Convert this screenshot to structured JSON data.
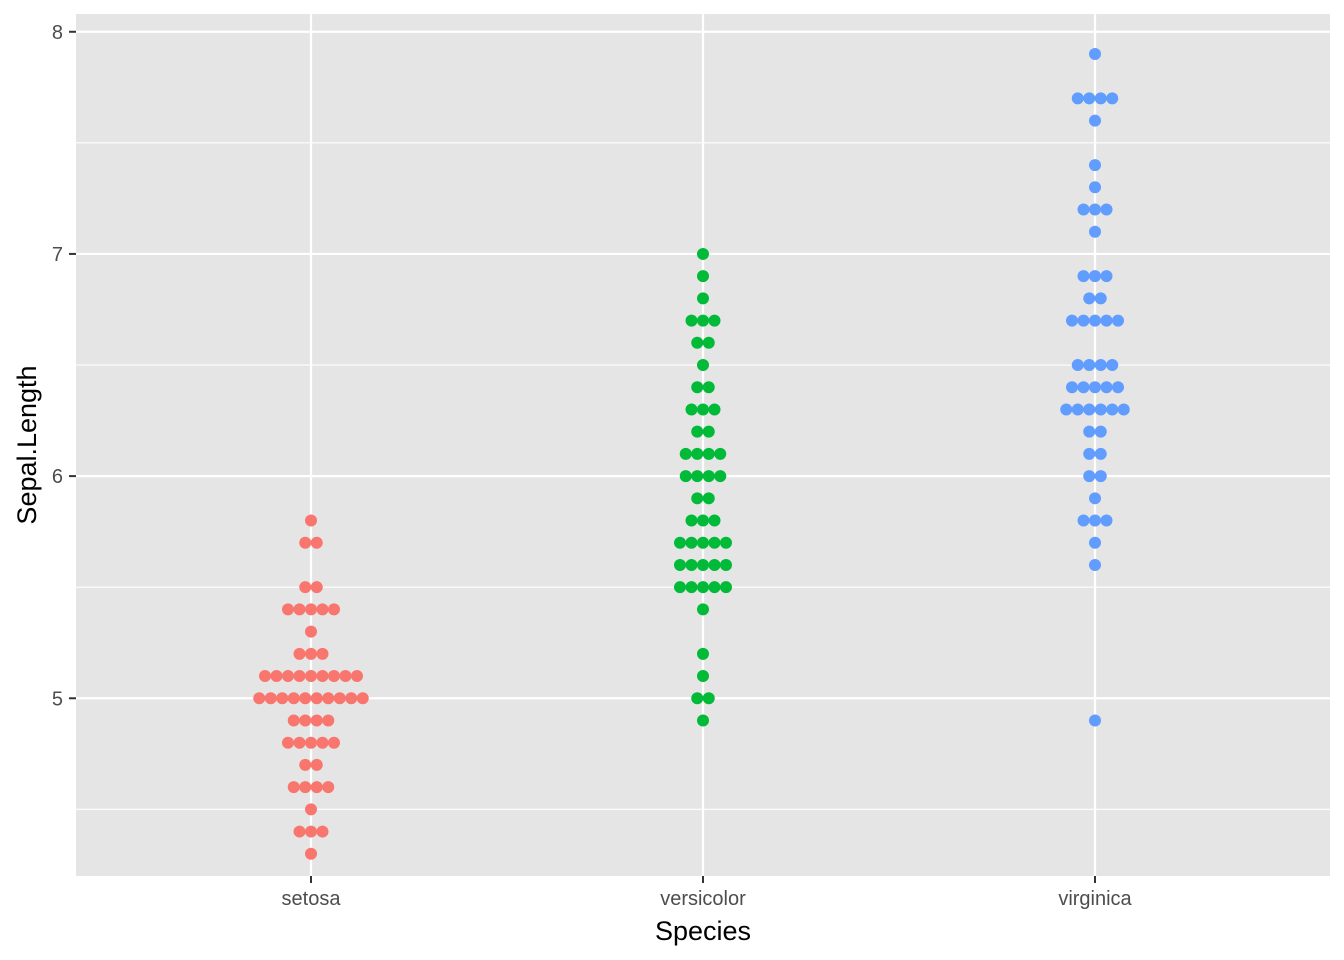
{
  "chart_data": {
    "type": "scatter",
    "subtype": "dotplot",
    "title": "",
    "xlabel": "Species",
    "ylabel": "Sepal.Length",
    "categories": [
      "setosa",
      "versicolor",
      "virginica"
    ],
    "ylim": [
      4.2,
      8.08
    ],
    "yticks": [
      5,
      6,
      7,
      8
    ],
    "grid": true,
    "legend": "none",
    "series": [
      {
        "category": "setosa",
        "color": "#F8766D",
        "values": [
          4.3,
          4.4,
          4.4,
          4.4,
          4.5,
          4.6,
          4.6,
          4.6,
          4.6,
          4.7,
          4.7,
          4.8,
          4.8,
          4.8,
          4.8,
          4.8,
          4.9,
          4.9,
          4.9,
          4.9,
          5.0,
          5.0,
          5.0,
          5.0,
          5.0,
          5.0,
          5.0,
          5.0,
          5.0,
          5.0,
          5.1,
          5.1,
          5.1,
          5.1,
          5.1,
          5.1,
          5.1,
          5.1,
          5.1,
          5.2,
          5.2,
          5.2,
          5.3,
          5.4,
          5.4,
          5.4,
          5.4,
          5.4,
          5.5,
          5.5,
          5.7,
          5.7,
          5.8
        ]
      },
      {
        "category": "versicolor",
        "color": "#00BA38",
        "values": [
          4.9,
          5.0,
          5.0,
          5.1,
          5.2,
          5.4,
          5.5,
          5.5,
          5.5,
          5.5,
          5.5,
          5.6,
          5.6,
          5.6,
          5.6,
          5.6,
          5.7,
          5.7,
          5.7,
          5.7,
          5.7,
          5.8,
          5.8,
          5.8,
          5.9,
          5.9,
          6.0,
          6.0,
          6.0,
          6.0,
          6.1,
          6.1,
          6.1,
          6.1,
          6.2,
          6.2,
          6.3,
          6.3,
          6.3,
          6.4,
          6.4,
          6.5,
          6.6,
          6.6,
          6.7,
          6.7,
          6.7,
          6.8,
          6.9,
          7.0
        ]
      },
      {
        "category": "virginica",
        "color": "#619CFF",
        "values": [
          4.9,
          5.6,
          5.7,
          5.8,
          5.8,
          5.8,
          5.9,
          6.0,
          6.0,
          6.1,
          6.1,
          6.2,
          6.2,
          6.3,
          6.3,
          6.3,
          6.3,
          6.3,
          6.3,
          6.4,
          6.4,
          6.4,
          6.4,
          6.4,
          6.5,
          6.5,
          6.5,
          6.5,
          6.7,
          6.7,
          6.7,
          6.7,
          6.7,
          6.8,
          6.8,
          6.9,
          6.9,
          6.9,
          7.1,
          7.2,
          7.2,
          7.2,
          7.3,
          7.4,
          7.6,
          7.7,
          7.7,
          7.7,
          7.7,
          7.9
        ]
      }
    ]
  },
  "colors": {
    "panel_background": "#E5E5E5",
    "gridline": "#FFFFFF",
    "tick_text": "#4D4D4D"
  }
}
